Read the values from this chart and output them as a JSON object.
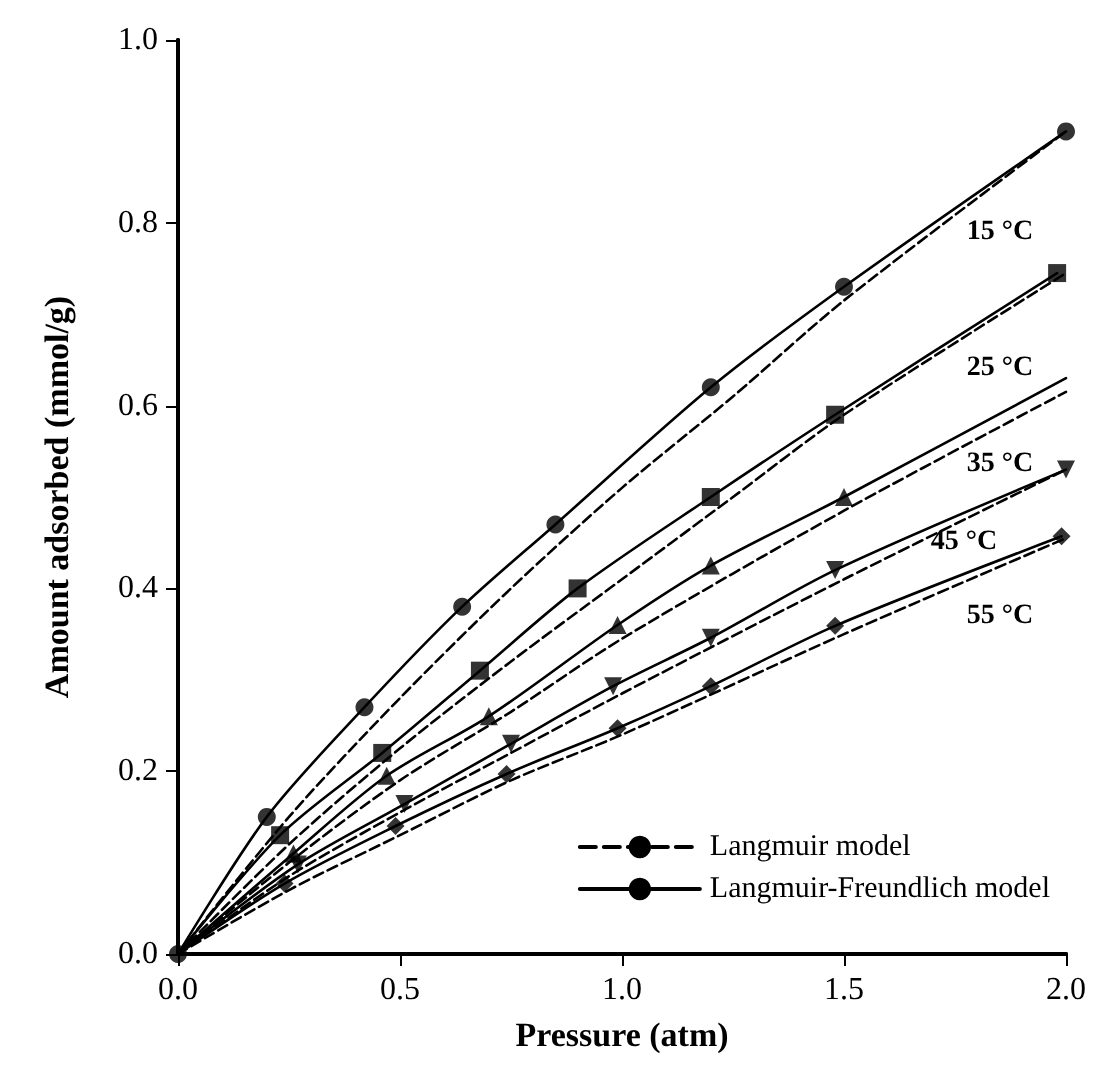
{
  "chart_data": {
    "type": "scatter",
    "xlabel": "Pressure (atm)",
    "ylabel": "Amount adsorbed (mmol/g)",
    "xlim": [
      0,
      2
    ],
    "ylim": [
      0,
      1
    ],
    "xticks": [
      {
        "value": 0,
        "label": "0.0"
      },
      0.5,
      {
        "value": 1,
        "label": "1.0"
      },
      1.5,
      {
        "value": 2,
        "label": "2.0"
      }
    ],
    "yticks": [
      {
        "value": 0,
        "label": "0.0"
      },
      0.2,
      0.4,
      0.6,
      0.8,
      {
        "value": 1,
        "label": "1.0"
      }
    ],
    "grid": false,
    "legend": "bottom right",
    "series": [
      {
        "marker": "circle",
        "color": "#000000",
        "x": [
          0,
          0.2,
          0.42,
          0.64,
          0.85,
          1.2,
          1.5,
          2.0
        ],
        "values": [
          0,
          0.15,
          0.27,
          0.38,
          0.47,
          0.62,
          0.73,
          0.9
        ]
      },
      {
        "marker": "square",
        "color": "#000000",
        "x": [
          0.23,
          0.46,
          0.68,
          0.9,
          1.2,
          1.48,
          1.98
        ],
        "values": [
          0.13,
          0.22,
          0.31,
          0.4,
          0.5,
          0.59,
          0.745
        ]
      },
      {
        "marker": "triangle",
        "color": "#000000",
        "x": [
          0.26,
          0.47,
          0.7,
          0.99,
          1.2,
          1.5
        ],
        "values": [
          0.11,
          0.195,
          0.26,
          0.36,
          0.425,
          0.5
        ]
      },
      {
        "marker": "triangle-down",
        "color": "#000000",
        "x": [
          0.27,
          0.51,
          0.75,
          0.98,
          1.2,
          1.48,
          2.0
        ],
        "values": [
          0.098,
          0.164,
          0.23,
          0.293,
          0.346,
          0.42,
          0.53
        ]
      },
      {
        "marker": "diamond",
        "color": "#000000",
        "x": [
          0.24,
          0.49,
          0.74,
          0.99,
          1.2,
          1.48,
          1.99
        ],
        "values": [
          0.077,
          0.14,
          0.197,
          0.247,
          0.293,
          0.359,
          0.457
        ]
      },
      {
        "type": "line",
        "name": "Langmuir model",
        "line_style": "dashed",
        "marker": "none",
        "color": "#000000",
        "x": [
          0,
          0.25,
          0.5,
          0.75,
          1.0,
          1.25,
          1.5,
          2.0
        ],
        "values": [
          0,
          0.15,
          0.28,
          0.4,
          0.51,
          0.61,
          0.715,
          0.9
        ]
      },
      {
        "type": "line",
        "line_style": "dashed",
        "marker": "none",
        "color": "#000000",
        "x": [
          0,
          0.25,
          0.5,
          0.75,
          1.0,
          1.25,
          1.5,
          2.0
        ],
        "values": [
          0,
          0.12,
          0.225,
          0.32,
          0.41,
          0.5,
          0.59,
          0.745
        ]
      },
      {
        "type": "line",
        "line_style": "dashed",
        "marker": "none",
        "color": "#000000",
        "x": [
          0,
          0.25,
          0.5,
          0.75,
          1.0,
          1.5,
          2.0
        ],
        "values": [
          0,
          0.1,
          0.19,
          0.265,
          0.345,
          0.485,
          0.615
        ]
      },
      {
        "type": "line",
        "line_style": "dashed",
        "marker": "none",
        "color": "#000000",
        "x": [
          0,
          0.25,
          0.5,
          0.75,
          1.0,
          1.5,
          2.0
        ],
        "values": [
          0,
          0.085,
          0.155,
          0.22,
          0.285,
          0.41,
          0.53
        ]
      },
      {
        "type": "line",
        "line_style": "dashed",
        "marker": "none",
        "color": "#000000",
        "x": [
          0,
          0.25,
          0.5,
          0.75,
          1.0,
          1.5,
          2.0
        ],
        "values": [
          0,
          0.07,
          0.13,
          0.19,
          0.24,
          0.35,
          0.455
        ]
      },
      {
        "type": "line",
        "name": "Langmuir-Freundlich model",
        "line_style": "solid",
        "marker": "none",
        "color": "#000000",
        "x": [
          0,
          0.2,
          0.42,
          0.64,
          0.85,
          1.2,
          1.5,
          2.0
        ],
        "values": [
          0,
          0.15,
          0.27,
          0.38,
          0.47,
          0.62,
          0.73,
          0.9
        ]
      },
      {
        "type": "line",
        "line_style": "solid",
        "marker": "none",
        "color": "#000000",
        "x": [
          0,
          0.23,
          0.46,
          0.68,
          0.9,
          1.2,
          1.48,
          1.98
        ],
        "values": [
          0,
          0.13,
          0.22,
          0.31,
          0.4,
          0.5,
          0.59,
          0.745
        ]
      },
      {
        "type": "line",
        "line_style": "solid",
        "marker": "none",
        "color": "#000000",
        "x": [
          0,
          0.26,
          0.47,
          0.7,
          0.99,
          1.2,
          1.5,
          2.0
        ],
        "values": [
          0,
          0.11,
          0.195,
          0.26,
          0.36,
          0.425,
          0.5,
          0.63
        ]
      },
      {
        "type": "line",
        "line_style": "solid",
        "marker": "none",
        "color": "#000000",
        "x": [
          0,
          0.27,
          0.51,
          0.75,
          0.98,
          1.2,
          1.48,
          2.0
        ],
        "values": [
          0,
          0.098,
          0.164,
          0.23,
          0.293,
          0.346,
          0.42,
          0.53
        ]
      },
      {
        "type": "line",
        "line_style": "solid",
        "marker": "none",
        "color": "#000000",
        "x": [
          0,
          0.24,
          0.49,
          0.74,
          0.99,
          1.2,
          1.48,
          1.99
        ],
        "values": [
          0,
          0.077,
          0.14,
          0.197,
          0.247,
          0.293,
          0.359,
          0.457
        ]
      }
    ],
    "annotations": [
      "15 °C",
      "25 °C",
      "35 °C",
      "45 °C",
      "55 °C"
    ]
  }
}
